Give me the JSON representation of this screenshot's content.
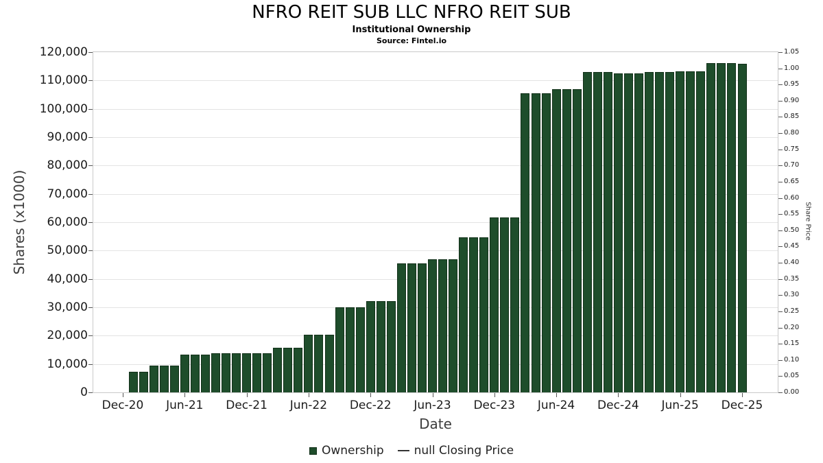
{
  "chart_data": {
    "type": "bar",
    "title": "NFRO REIT SUB LLC NFRO REIT SUB",
    "subtitle": "Institutional Ownership",
    "source": "Source: Fintel.io",
    "xlabel": "Date",
    "ylabel_left": "Shares (x1000)",
    "ylabel_right": "Share Price",
    "ylim_left": [
      0,
      120000
    ],
    "ylim_right": [
      0,
      1.05
    ],
    "grid": "horizontal",
    "legend_position": "bottom-center",
    "y_ticks_left": [
      "0",
      "10,000",
      "20,000",
      "30,000",
      "40,000",
      "50,000",
      "60,000",
      "70,000",
      "80,000",
      "90,000",
      "100,000",
      "110,000",
      "120,000"
    ],
    "y_ticks_right": [
      "0.00",
      "0.05",
      "0.10",
      "0.15",
      "0.20",
      "0.25",
      "0.30",
      "0.35",
      "0.40",
      "0.45",
      "0.50",
      "0.55",
      "0.60",
      "0.65",
      "0.70",
      "0.75",
      "0.80",
      "0.85",
      "0.90",
      "0.95",
      "1.00",
      "1.05"
    ],
    "x_ticks": [
      "Dec-20",
      "Jun-21",
      "Dec-21",
      "Jun-22",
      "Dec-22",
      "Jun-23",
      "Dec-23",
      "Jun-24",
      "Dec-24",
      "Jun-25",
      "Dec-25"
    ],
    "x_tick_month_offsets": [
      0,
      6,
      12,
      18,
      24,
      30,
      36,
      42,
      48,
      54,
      60
    ],
    "series": [
      {
        "name": "Ownership",
        "unit": "shares x1000",
        "months": [
          "Jan-21",
          "Feb-21",
          "Mar-21",
          "Apr-21",
          "May-21",
          "Jun-21",
          "Jul-21",
          "Aug-21",
          "Sep-21",
          "Oct-21",
          "Nov-21",
          "Dec-21",
          "Jan-22",
          "Feb-22",
          "Mar-22",
          "Apr-22",
          "May-22",
          "Jun-22",
          "Jul-22",
          "Aug-22",
          "Sep-22",
          "Oct-22",
          "Nov-22",
          "Dec-22",
          "Jan-23",
          "Feb-23",
          "Mar-23",
          "Apr-23",
          "May-23",
          "Jun-23",
          "Jul-23",
          "Aug-23",
          "Sep-23",
          "Oct-23",
          "Nov-23",
          "Dec-23",
          "Jan-24",
          "Feb-24",
          "Mar-24",
          "Apr-24",
          "May-24",
          "Jun-24",
          "Jul-24",
          "Aug-24",
          "Sep-24",
          "Oct-24",
          "Nov-24",
          "Dec-24",
          "Jan-25",
          "Feb-25",
          "Mar-25",
          "Apr-25",
          "May-25",
          "Jun-25",
          "Jul-25",
          "Aug-25",
          "Sep-25",
          "Oct-25",
          "Nov-25",
          "Dec-25"
        ],
        "values": [
          7200,
          7200,
          9500,
          9500,
          9500,
          13300,
          13300,
          13300,
          13800,
          13800,
          13800,
          13900,
          13900,
          13900,
          15800,
          15800,
          15800,
          20300,
          20300,
          20300,
          30000,
          30000,
          30000,
          32300,
          32300,
          32300,
          45600,
          45600,
          45600,
          46900,
          46900,
          46900,
          54800,
          54800,
          54800,
          61800,
          61800,
          61800,
          105400,
          105400,
          105400,
          107000,
          107000,
          107000,
          112900,
          112900,
          112900,
          112600,
          112600,
          112600,
          112900,
          112900,
          112900,
          113300,
          113300,
          113300,
          116200,
          116200,
          116200,
          116000
        ]
      }
    ],
    "closing_price": {
      "name": "null Closing Price",
      "values": []
    },
    "legend": {
      "ownership_label": "Ownership",
      "price_label": "null Closing Price"
    }
  },
  "colors": {
    "bar": "#1e4d2b",
    "bar_border": "#123019",
    "grid": "#e3e3e3",
    "plot_border": "#c9c9c9",
    "tick": "#555555",
    "text": "#1a1a1a",
    "axis_title": "#3d3d3d"
  }
}
